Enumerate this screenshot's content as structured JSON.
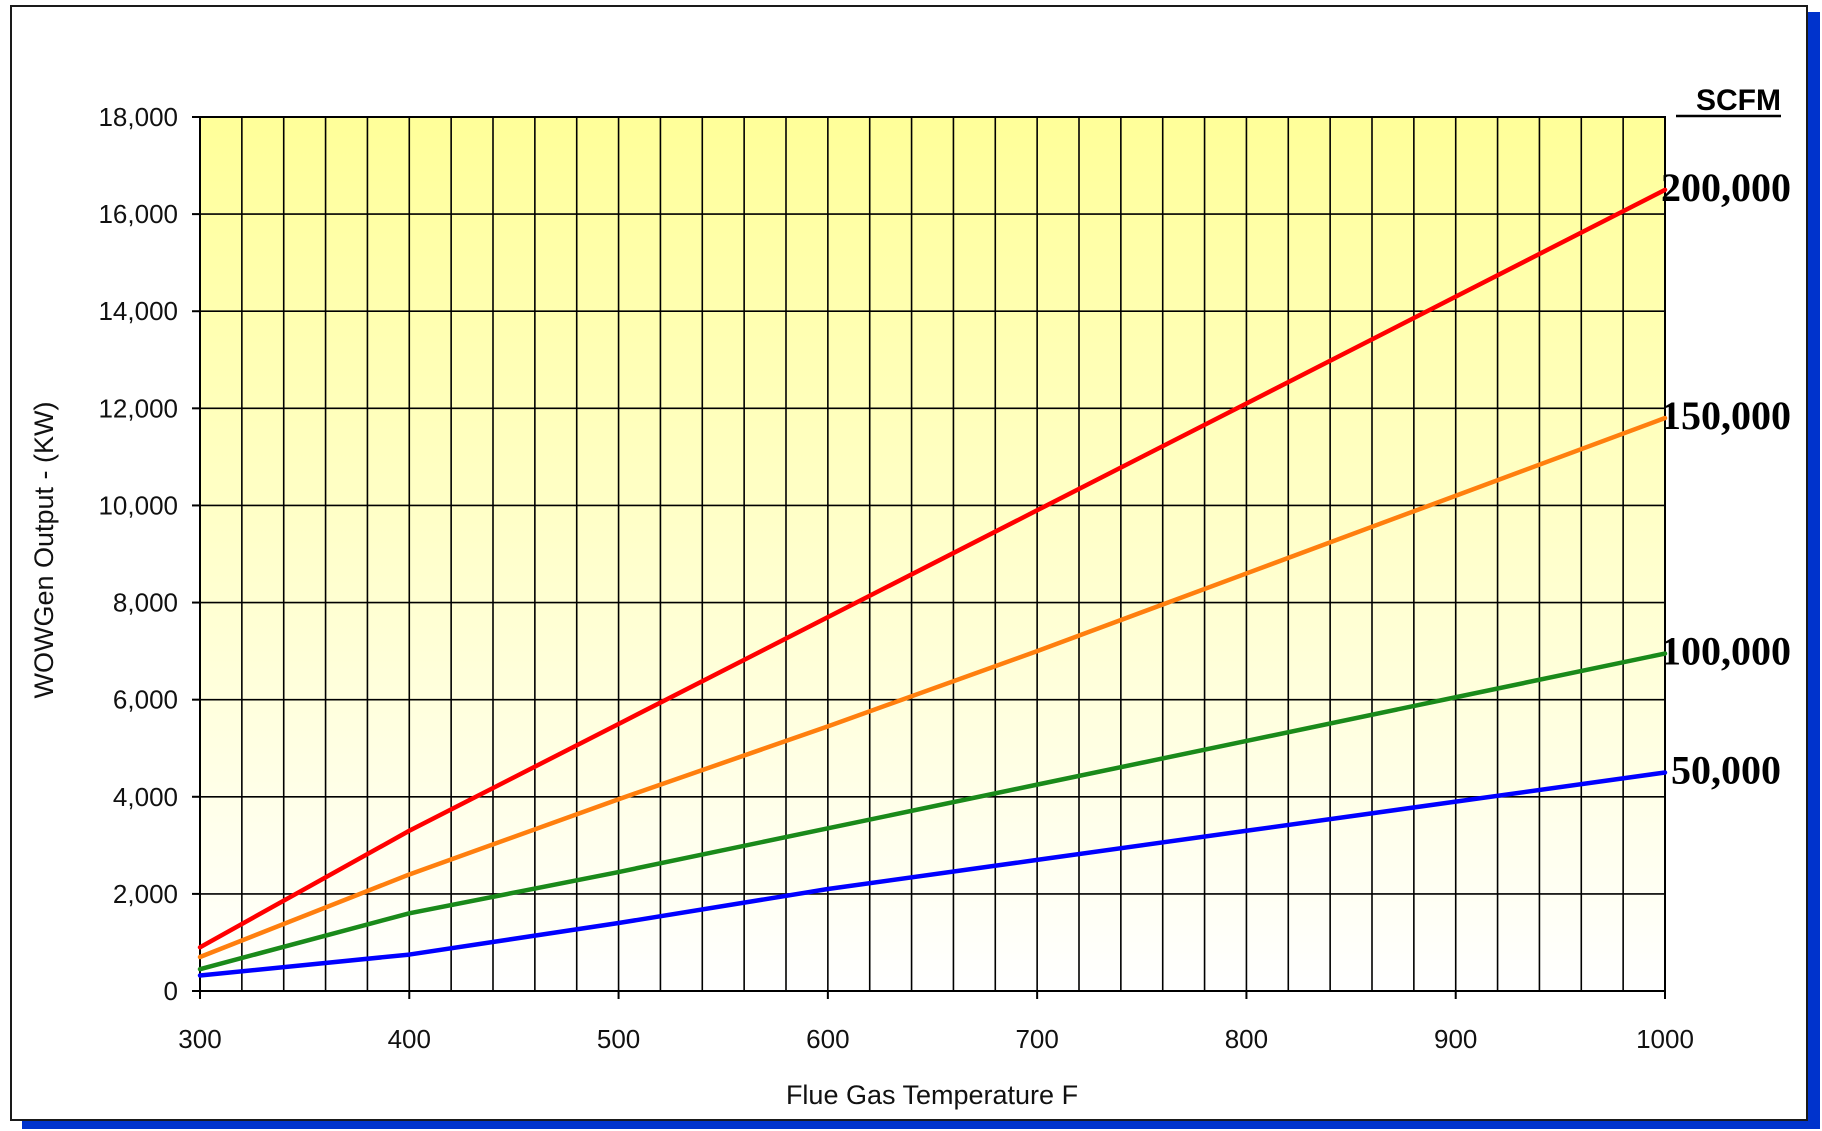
{
  "chart_data": {
    "type": "line",
    "xlabel": "Flue Gas Temperature F",
    "ylabel": "WOWGen Output -  (KW)",
    "xlim": [
      300,
      1000
    ],
    "ylim": [
      0,
      18000
    ],
    "x_ticks": [
      "300",
      "400",
      "500",
      "600",
      "700",
      "800",
      "900",
      "1000"
    ],
    "y_ticks": [
      "0",
      "2,000",
      "4,000",
      "6,000",
      "8,000",
      "10,000",
      "12,000",
      "14,000",
      "16,000",
      "18,000"
    ],
    "grid": true,
    "legend_title": "SCFM",
    "background": {
      "top": "#ffff99",
      "bottom": "#ffffff"
    },
    "series": [
      {
        "name": "200,000",
        "color": "#ff0000",
        "x": [
          300,
          400,
          500,
          600,
          700,
          800,
          900,
          1000
        ],
        "y": [
          900,
          3300,
          5500,
          7700,
          9900,
          12100,
          14300,
          16500
        ]
      },
      {
        "name": "150,000",
        "color": "#ff7f0e",
        "x": [
          300,
          400,
          500,
          600,
          700,
          800,
          900,
          1000
        ],
        "y": [
          700,
          2400,
          3950,
          5450,
          7000,
          8600,
          10200,
          11800
        ]
      },
      {
        "name": "100,000",
        "color": "#1a8a1a",
        "x": [
          300,
          400,
          500,
          600,
          700,
          800,
          900,
          1000
        ],
        "y": [
          450,
          1600,
          2450,
          3350,
          4250,
          5150,
          6050,
          6950
        ]
      },
      {
        "name": "50,000",
        "color": "#0000ff",
        "x": [
          300,
          400,
          500,
          600,
          700,
          800,
          900,
          1000
        ],
        "y": [
          320,
          750,
          1400,
          2100,
          2700,
          3300,
          3900,
          4500
        ]
      }
    ]
  }
}
